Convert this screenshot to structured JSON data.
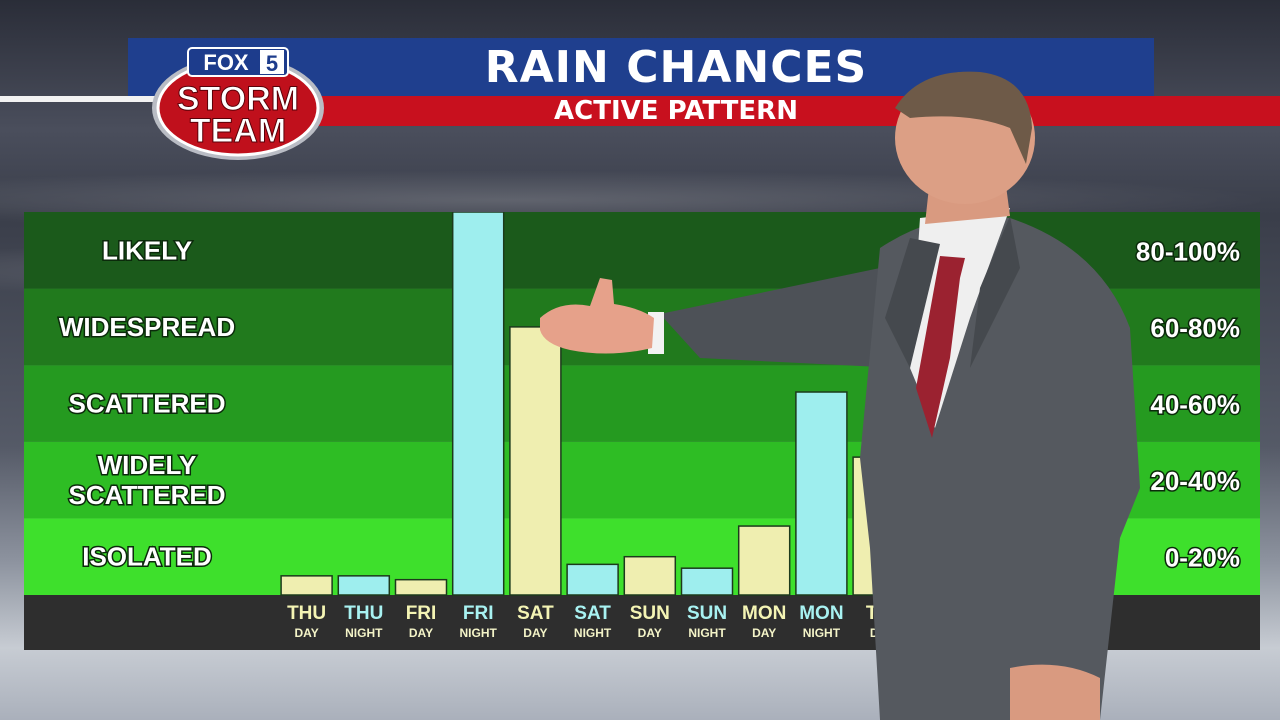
{
  "header": {
    "title": "RAIN CHANCES",
    "subtitle": "ACTIVE PATTERN"
  },
  "logo": {
    "top_text": "FOX",
    "number": "5",
    "line1": "STORM",
    "line2": "TEAM"
  },
  "colors": {
    "title_bar": "#1f3f8e",
    "subtitle_bar": "#c8101e",
    "day_bar": "#efeeb0",
    "night_bar": "#9eeeee",
    "day_text": "#f4f4b4",
    "night_text": "#a8f2f2"
  },
  "chart_data": {
    "type": "bar",
    "categories": [
      {
        "day": "THU",
        "part": "DAY"
      },
      {
        "day": "THU",
        "part": "NIGHT"
      },
      {
        "day": "FRI",
        "part": "DAY"
      },
      {
        "day": "FRI",
        "part": "NIGHT"
      },
      {
        "day": "SAT",
        "part": "DAY"
      },
      {
        "day": "SAT",
        "part": "NIGHT"
      },
      {
        "day": "SUN",
        "part": "DAY"
      },
      {
        "day": "SUN",
        "part": "NIGHT"
      },
      {
        "day": "MON",
        "part": "DAY"
      },
      {
        "day": "MON",
        "part": "NIGHT"
      },
      {
        "day": "TU",
        "part": "DA"
      }
    ],
    "values": [
      5,
      5,
      4,
      100,
      70,
      8,
      10,
      7,
      18,
      53,
      36
    ],
    "ylim": [
      0,
      100
    ],
    "bands": [
      {
        "label": "LIKELY",
        "range": "80-100%",
        "low": 80,
        "high": 100,
        "color": "#1b5a1b"
      },
      {
        "label": "WIDESPREAD",
        "range": "60-80%",
        "low": 60,
        "high": 80,
        "color": "#217a1d"
      },
      {
        "label": "SCATTERED",
        "range": "40-60%",
        "low": 40,
        "high": 60,
        "color": "#259a20"
      },
      {
        "label": "WIDELY SCATTERED",
        "label_lines": [
          "WIDELY",
          "SCATTERED"
        ],
        "range": "20-40%",
        "low": 20,
        "high": 40,
        "color": "#2ebd24"
      },
      {
        "label": "ISOLATED",
        "range": "0-20%",
        "low": 0,
        "high": 20,
        "color": "#3ee02c"
      }
    ]
  }
}
